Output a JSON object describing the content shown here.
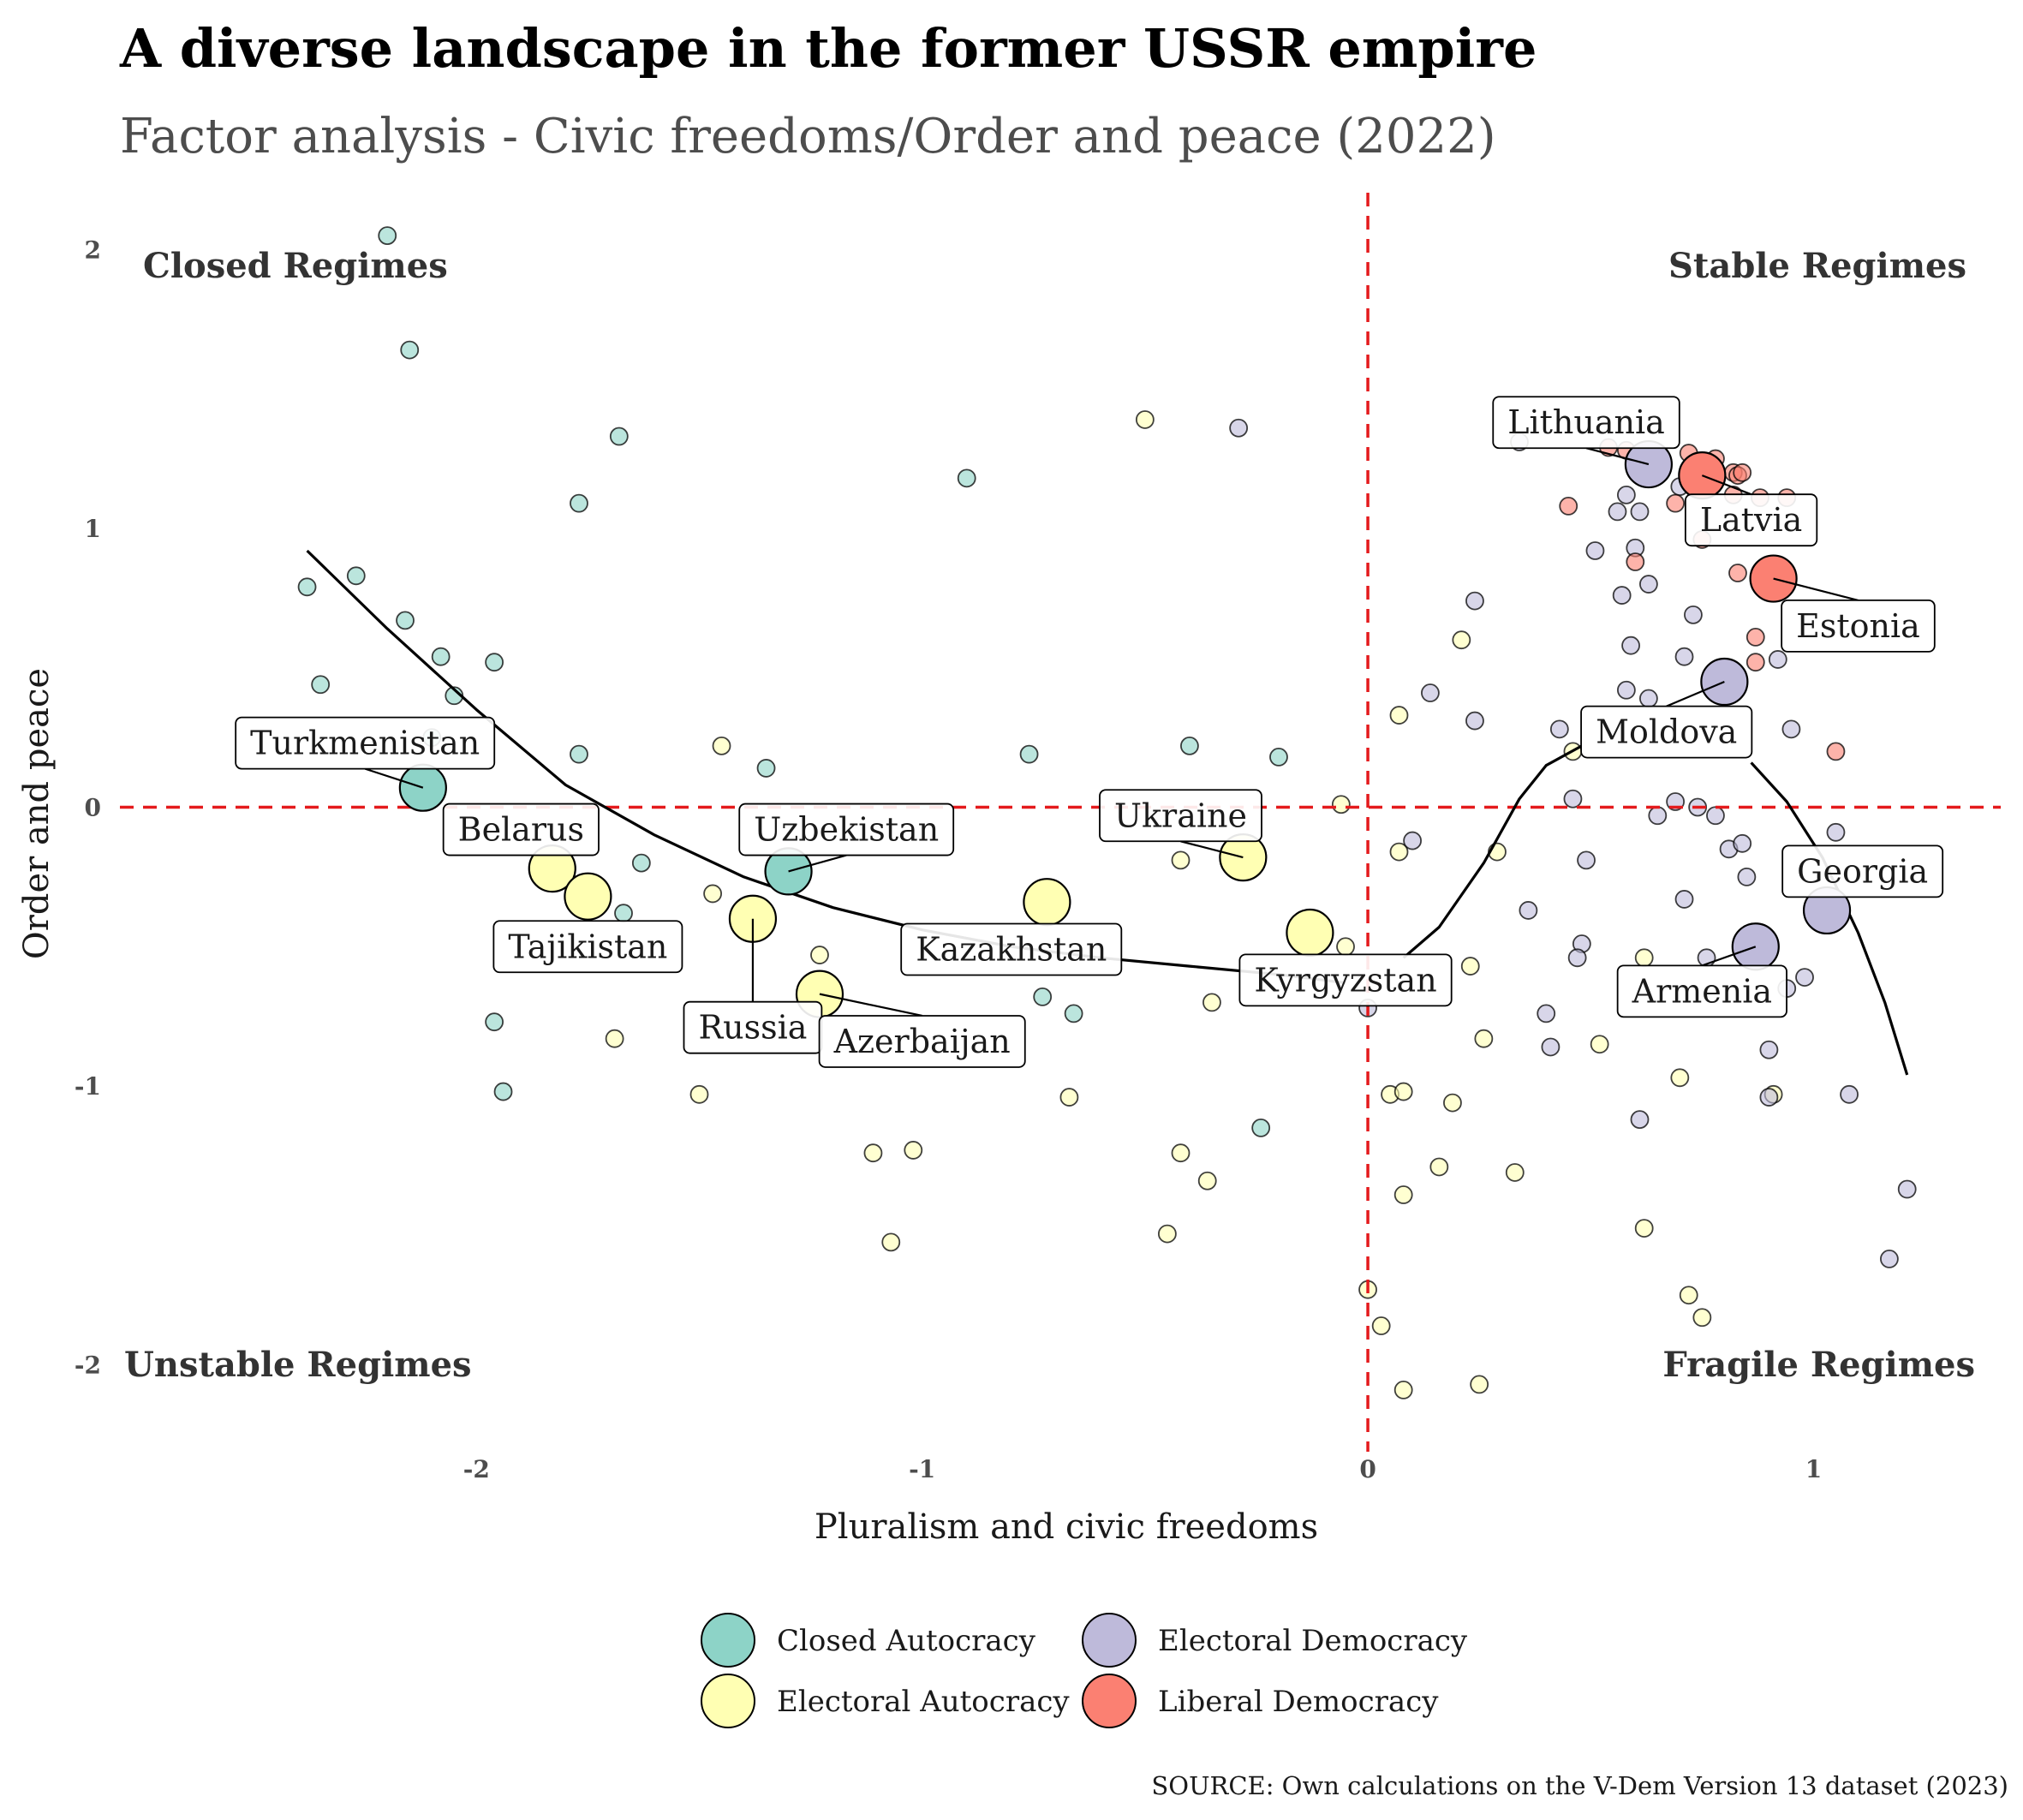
{
  "header": {
    "title": "A diverse landscape in the former USSR empire",
    "subtitle": "Factor analysis - Civic freedoms/Order and peace (2022)"
  },
  "source": "SOURCE: Own calculations on the V-Dem Version 13 dataset (2023)",
  "chart_data": {
    "type": "scatter",
    "xlabel": "Pluralism and civic freedoms",
    "ylabel": "Order and peace",
    "xlim": [
      -2.8,
      1.42
    ],
    "ylim": [
      -2.25,
      2.25
    ],
    "x_ticks": [
      {
        "v": -2,
        "label": "-2"
      },
      {
        "v": -1,
        "label": "-1"
      },
      {
        "v": 0,
        "label": "0"
      },
      {
        "v": 1,
        "label": "1"
      }
    ],
    "y_ticks": [
      {
        "v": -2,
        "label": "-2"
      },
      {
        "v": -1,
        "label": "-1"
      },
      {
        "v": 0,
        "label": "0"
      },
      {
        "v": 1,
        "label": "1"
      },
      {
        "v": 2,
        "label": "2"
      }
    ],
    "grid": false,
    "reference_lines": {
      "x": 0,
      "y": 0,
      "color": "#e41a1c",
      "style": "dashed"
    },
    "quadrant_labels": {
      "top_left": "Closed Regimes",
      "top_right": "Stable Regimes",
      "bottom_left": "Unstable Regimes",
      "bottom_right": "Fragile Regimes"
    },
    "legend": {
      "position": "bottom",
      "entries": [
        {
          "key": "closed",
          "label": "Closed Autocracy"
        },
        {
          "key": "eauto",
          "label": "Electoral Autocracy"
        },
        {
          "key": "edem",
          "label": "Electoral Democracy"
        },
        {
          "key": "ldem",
          "label": "Liberal Democracy"
        }
      ]
    },
    "colors": {
      "closed": "#8dd3c7",
      "eauto": "#ffffb3",
      "edem": "#bebada",
      "ldem": "#fb8072"
    },
    "highlighted": [
      {
        "label": "Turkmenistan",
        "x": -2.12,
        "y": 0.07,
        "regime": "closed",
        "label_x": -2.25,
        "label_y": 0.23
      },
      {
        "label": "Belarus",
        "x": -1.83,
        "y": -0.22,
        "regime": "eauto",
        "label_x": -1.9,
        "label_y": -0.08
      },
      {
        "label": "Tajikistan",
        "x": -1.75,
        "y": -0.32,
        "regime": "eauto",
        "label_x": -1.75,
        "label_y": -0.5
      },
      {
        "label": "Russia",
        "x": -1.38,
        "y": -0.4,
        "regime": "eauto",
        "label_x": -1.38,
        "label_y": -0.79
      },
      {
        "label": "Uzbekistan",
        "x": -1.3,
        "y": -0.23,
        "regime": "closed",
        "label_x": -1.17,
        "label_y": -0.08
      },
      {
        "label": "Azerbaijan",
        "x": -1.23,
        "y": -0.67,
        "regime": "eauto",
        "label_x": -1.0,
        "label_y": -0.84
      },
      {
        "label": "Kazakhstan",
        "x": -0.72,
        "y": -0.34,
        "regime": "eauto",
        "label_x": -0.8,
        "label_y": -0.51
      },
      {
        "label": "Ukraine",
        "x": -0.28,
        "y": -0.18,
        "regime": "eauto",
        "label_x": -0.42,
        "label_y": -0.03
      },
      {
        "label": "Kyrgyzstan",
        "x": -0.13,
        "y": -0.45,
        "regime": "eauto",
        "label_x": -0.05,
        "label_y": -0.62
      },
      {
        "label": "Lithuania",
        "x": 0.63,
        "y": 1.23,
        "regime": "edem",
        "label_x": 0.49,
        "label_y": 1.38
      },
      {
        "label": "Latvia",
        "x": 0.75,
        "y": 1.19,
        "regime": "ldem",
        "label_x": 0.86,
        "label_y": 1.03
      },
      {
        "label": "Estonia",
        "x": 0.91,
        "y": 0.82,
        "regime": "ldem",
        "label_x": 1.1,
        "label_y": 0.65
      },
      {
        "label": "Moldova",
        "x": 0.8,
        "y": 0.45,
        "regime": "edem",
        "label_x": 0.67,
        "label_y": 0.27
      },
      {
        "label": "Georgia",
        "x": 1.03,
        "y": -0.37,
        "regime": "edem",
        "label_x": 1.11,
        "label_y": -0.23
      },
      {
        "label": "Armenia",
        "x": 0.87,
        "y": -0.5,
        "regime": "edem",
        "label_x": 0.75,
        "label_y": -0.66
      }
    ],
    "background_points": [
      {
        "x": -2.2,
        "y": 2.05,
        "regime": "closed"
      },
      {
        "x": -2.15,
        "y": 1.64,
        "regime": "closed"
      },
      {
        "x": -1.68,
        "y": 1.33,
        "regime": "closed"
      },
      {
        "x": -1.77,
        "y": 1.09,
        "regime": "closed"
      },
      {
        "x": -2.27,
        "y": 0.83,
        "regime": "closed"
      },
      {
        "x": -2.38,
        "y": 0.79,
        "regime": "closed"
      },
      {
        "x": -2.16,
        "y": 0.67,
        "regime": "closed"
      },
      {
        "x": -2.08,
        "y": 0.54,
        "regime": "closed"
      },
      {
        "x": -1.96,
        "y": 0.52,
        "regime": "closed"
      },
      {
        "x": -2.35,
        "y": 0.44,
        "regime": "closed"
      },
      {
        "x": -2.05,
        "y": 0.4,
        "regime": "closed"
      },
      {
        "x": -2.1,
        "y": 0.25,
        "regime": "closed"
      },
      {
        "x": -1.77,
        "y": 0.19,
        "regime": "closed"
      },
      {
        "x": -1.35,
        "y": 0.14,
        "regime": "closed"
      },
      {
        "x": -0.9,
        "y": 1.18,
        "regime": "closed"
      },
      {
        "x": -0.76,
        "y": 0.19,
        "regime": "closed"
      },
      {
        "x": -0.4,
        "y": 0.22,
        "regime": "closed"
      },
      {
        "x": -0.2,
        "y": 0.18,
        "regime": "closed"
      },
      {
        "x": -1.63,
        "y": -0.2,
        "regime": "closed"
      },
      {
        "x": -1.67,
        "y": -0.38,
        "regime": "closed"
      },
      {
        "x": -1.96,
        "y": -0.77,
        "regime": "closed"
      },
      {
        "x": -1.94,
        "y": -1.02,
        "regime": "closed"
      },
      {
        "x": -0.73,
        "y": -0.68,
        "regime": "closed"
      },
      {
        "x": -0.66,
        "y": -0.74,
        "regime": "closed"
      },
      {
        "x": -0.24,
        "y": -1.15,
        "regime": "closed"
      },
      {
        "x": -0.5,
        "y": 1.39,
        "regime": "eauto"
      },
      {
        "x": -1.45,
        "y": 0.22,
        "regime": "eauto"
      },
      {
        "x": -1.47,
        "y": -0.31,
        "regime": "eauto"
      },
      {
        "x": -1.23,
        "y": -0.53,
        "regime": "eauto"
      },
      {
        "x": -1.69,
        "y": -0.83,
        "regime": "eauto"
      },
      {
        "x": -1.5,
        "y": -1.03,
        "regime": "eauto"
      },
      {
        "x": -1.11,
        "y": -1.24,
        "regime": "eauto"
      },
      {
        "x": -1.02,
        "y": -1.23,
        "regime": "eauto"
      },
      {
        "x": -1.07,
        "y": -1.56,
        "regime": "eauto"
      },
      {
        "x": -0.67,
        "y": -1.04,
        "regime": "eauto"
      },
      {
        "x": -0.42,
        "y": -1.24,
        "regime": "eauto"
      },
      {
        "x": -0.36,
        "y": -1.34,
        "regime": "eauto"
      },
      {
        "x": -0.45,
        "y": -1.53,
        "regime": "eauto"
      },
      {
        "x": -0.35,
        "y": -0.7,
        "regime": "eauto"
      },
      {
        "x": -0.42,
        "y": -0.19,
        "regime": "eauto"
      },
      {
        "x": -0.06,
        "y": 0.01,
        "regime": "eauto"
      },
      {
        "x": 0.07,
        "y": 0.33,
        "regime": "eauto"
      },
      {
        "x": 0.21,
        "y": 0.6,
        "regime": "eauto"
      },
      {
        "x": 0.07,
        "y": -0.16,
        "regime": "eauto"
      },
      {
        "x": 0.29,
        "y": -0.16,
        "regime": "eauto"
      },
      {
        "x": 0.23,
        "y": -0.57,
        "regime": "eauto"
      },
      {
        "x": 0.26,
        "y": -0.83,
        "regime": "eauto"
      },
      {
        "x": 0.05,
        "y": -1.03,
        "regime": "eauto"
      },
      {
        "x": 0.08,
        "y": -1.02,
        "regime": "eauto"
      },
      {
        "x": 0.19,
        "y": -1.06,
        "regime": "eauto"
      },
      {
        "x": 0.16,
        "y": -1.29,
        "regime": "eauto"
      },
      {
        "x": 0.33,
        "y": -1.31,
        "regime": "eauto"
      },
      {
        "x": 0.08,
        "y": -1.39,
        "regime": "eauto"
      },
      {
        "x": 0.0,
        "y": -1.73,
        "regime": "eauto"
      },
      {
        "x": 0.03,
        "y": -1.86,
        "regime": "eauto"
      },
      {
        "x": 0.08,
        "y": -2.09,
        "regime": "eauto"
      },
      {
        "x": 0.25,
        "y": -2.07,
        "regime": "eauto"
      },
      {
        "x": 0.52,
        "y": -0.85,
        "regime": "eauto"
      },
      {
        "x": 0.62,
        "y": -0.54,
        "regime": "eauto"
      },
      {
        "x": 0.7,
        "y": -0.97,
        "regime": "eauto"
      },
      {
        "x": 0.62,
        "y": -1.51,
        "regime": "eauto"
      },
      {
        "x": 0.72,
        "y": -1.75,
        "regime": "eauto"
      },
      {
        "x": 0.75,
        "y": -1.83,
        "regime": "eauto"
      },
      {
        "x": 0.91,
        "y": -1.03,
        "regime": "eauto"
      },
      {
        "x": 0.46,
        "y": 0.2,
        "regime": "eauto"
      },
      {
        "x": -0.05,
        "y": -0.5,
        "regime": "eauto"
      },
      {
        "x": -0.29,
        "y": 1.36,
        "regime": "edem"
      },
      {
        "x": 0.34,
        "y": 1.31,
        "regime": "edem"
      },
      {
        "x": 0.58,
        "y": 1.12,
        "regime": "edem"
      },
      {
        "x": 0.56,
        "y": 1.06,
        "regime": "edem"
      },
      {
        "x": 0.61,
        "y": 1.06,
        "regime": "edem"
      },
      {
        "x": 0.7,
        "y": 1.15,
        "regime": "edem"
      },
      {
        "x": 0.51,
        "y": 0.92,
        "regime": "edem"
      },
      {
        "x": 0.6,
        "y": 0.93,
        "regime": "edem"
      },
      {
        "x": 0.63,
        "y": 0.8,
        "regime": "edem"
      },
      {
        "x": 0.57,
        "y": 0.76,
        "regime": "edem"
      },
      {
        "x": 0.24,
        "y": 0.74,
        "regime": "edem"
      },
      {
        "x": 0.73,
        "y": 0.69,
        "regime": "edem"
      },
      {
        "x": 0.59,
        "y": 0.58,
        "regime": "edem"
      },
      {
        "x": 0.71,
        "y": 0.54,
        "regime": "edem"
      },
      {
        "x": 0.92,
        "y": 0.53,
        "regime": "edem"
      },
      {
        "x": 0.14,
        "y": 0.41,
        "regime": "edem"
      },
      {
        "x": 0.24,
        "y": 0.31,
        "regime": "edem"
      },
      {
        "x": 0.43,
        "y": 0.28,
        "regime": "edem"
      },
      {
        "x": 0.58,
        "y": 0.42,
        "regime": "edem"
      },
      {
        "x": 0.63,
        "y": 0.39,
        "regime": "edem"
      },
      {
        "x": 0.95,
        "y": 0.28,
        "regime": "edem"
      },
      {
        "x": 0.46,
        "y": 0.03,
        "regime": "edem"
      },
      {
        "x": 0.65,
        "y": -0.03,
        "regime": "edem"
      },
      {
        "x": 0.69,
        "y": 0.02,
        "regime": "edem"
      },
      {
        "x": 0.74,
        "y": 0.0,
        "regime": "edem"
      },
      {
        "x": 0.78,
        "y": -0.03,
        "regime": "edem"
      },
      {
        "x": 0.81,
        "y": -0.15,
        "regime": "edem"
      },
      {
        "x": 0.84,
        "y": -0.13,
        "regime": "edem"
      },
      {
        "x": 0.85,
        "y": -0.25,
        "regime": "edem"
      },
      {
        "x": 1.05,
        "y": -0.09,
        "regime": "edem"
      },
      {
        "x": 0.1,
        "y": -0.12,
        "regime": "edem"
      },
      {
        "x": 0.49,
        "y": -0.19,
        "regime": "edem"
      },
      {
        "x": 0.36,
        "y": -0.37,
        "regime": "edem"
      },
      {
        "x": 0.48,
        "y": -0.49,
        "regime": "edem"
      },
      {
        "x": 0.47,
        "y": -0.54,
        "regime": "edem"
      },
      {
        "x": 0.71,
        "y": -0.33,
        "regime": "edem"
      },
      {
        "x": 0.76,
        "y": -0.54,
        "regime": "edem"
      },
      {
        "x": 0.94,
        "y": -0.65,
        "regime": "edem"
      },
      {
        "x": 0.98,
        "y": -0.61,
        "regime": "edem"
      },
      {
        "x": 0.4,
        "y": -0.74,
        "regime": "edem"
      },
      {
        "x": 0.41,
        "y": -0.86,
        "regime": "edem"
      },
      {
        "x": 0.9,
        "y": -0.87,
        "regime": "edem"
      },
      {
        "x": 0.9,
        "y": -1.04,
        "regime": "edem"
      },
      {
        "x": 1.08,
        "y": -1.03,
        "regime": "edem"
      },
      {
        "x": 0.61,
        "y": -1.12,
        "regime": "edem"
      },
      {
        "x": 1.21,
        "y": -1.37,
        "regime": "edem"
      },
      {
        "x": 1.17,
        "y": -1.62,
        "regime": "edem"
      },
      {
        "x": 0.0,
        "y": -0.72,
        "regime": "edem"
      },
      {
        "x": 0.54,
        "y": 1.29,
        "regime": "ldem"
      },
      {
        "x": 0.58,
        "y": 1.28,
        "regime": "ldem"
      },
      {
        "x": 0.72,
        "y": 1.27,
        "regime": "ldem"
      },
      {
        "x": 0.78,
        "y": 1.25,
        "regime": "ldem"
      },
      {
        "x": 0.82,
        "y": 1.2,
        "regime": "ldem"
      },
      {
        "x": 0.83,
        "y": 1.19,
        "regime": "ldem"
      },
      {
        "x": 0.84,
        "y": 1.2,
        "regime": "ldem"
      },
      {
        "x": 0.45,
        "y": 1.08,
        "regime": "ldem"
      },
      {
        "x": 0.69,
        "y": 1.09,
        "regime": "ldem"
      },
      {
        "x": 0.82,
        "y": 1.12,
        "regime": "ldem"
      },
      {
        "x": 0.88,
        "y": 1.11,
        "regime": "ldem"
      },
      {
        "x": 0.94,
        "y": 1.11,
        "regime": "ldem"
      },
      {
        "x": 0.75,
        "y": 0.96,
        "regime": "ldem"
      },
      {
        "x": 0.6,
        "y": 0.88,
        "regime": "ldem"
      },
      {
        "x": 0.83,
        "y": 0.84,
        "regime": "ldem"
      },
      {
        "x": 0.87,
        "y": 0.61,
        "regime": "ldem"
      },
      {
        "x": 0.87,
        "y": 0.52,
        "regime": "ldem"
      },
      {
        "x": 1.05,
        "y": 0.2,
        "regime": "ldem"
      }
    ],
    "trend_segments": [
      [
        {
          "x": -2.38,
          "y": 0.92
        },
        {
          "x": -2.2,
          "y": 0.64
        },
        {
          "x": -2.0,
          "y": 0.35
        },
        {
          "x": -1.8,
          "y": 0.08
        },
        {
          "x": -1.6,
          "y": -0.1
        },
        {
          "x": -1.4,
          "y": -0.25
        },
        {
          "x": -1.2,
          "y": -0.36
        },
        {
          "x": -1.0,
          "y": -0.44
        },
        {
          "x": -0.8,
          "y": -0.5
        },
        {
          "x": -0.6,
          "y": -0.54
        },
        {
          "x": -0.4,
          "y": -0.57
        },
        {
          "x": -0.2,
          "y": -0.6
        },
        {
          "x": -0.05,
          "y": -0.63
        }
      ],
      [
        {
          "x": 0.08,
          "y": -0.54
        },
        {
          "x": 0.16,
          "y": -0.43
        },
        {
          "x": 0.26,
          "y": -0.2
        },
        {
          "x": 0.34,
          "y": 0.03
        },
        {
          "x": 0.4,
          "y": 0.15
        },
        {
          "x": 0.48,
          "y": 0.22
        }
      ],
      [
        {
          "x": 0.86,
          "y": 0.16
        },
        {
          "x": 0.94,
          "y": 0.02
        },
        {
          "x": 1.02,
          "y": -0.18
        },
        {
          "x": 1.1,
          "y": -0.45
        },
        {
          "x": 1.16,
          "y": -0.7
        },
        {
          "x": 1.21,
          "y": -0.96
        }
      ]
    ]
  }
}
